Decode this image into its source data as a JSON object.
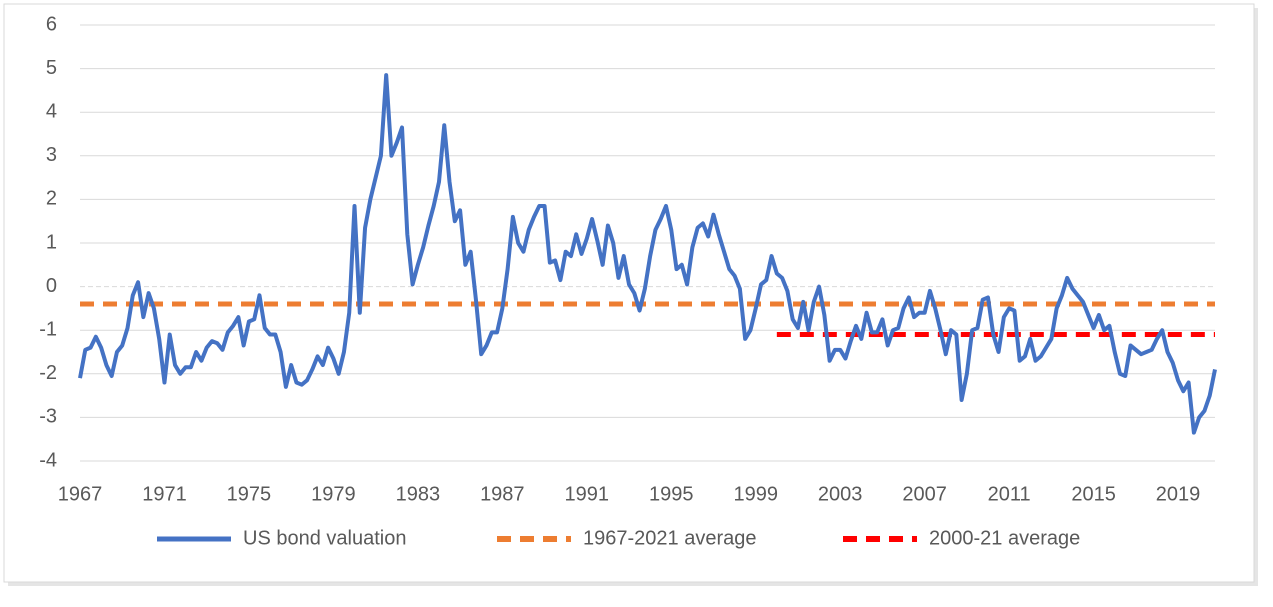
{
  "chart_data": {
    "type": "line",
    "x": [
      1967,
      1967.25,
      1967.5,
      1967.75,
      1968,
      1968.25,
      1968.5,
      1968.75,
      1969,
      1969.25,
      1969.5,
      1969.75,
      1970,
      1970.25,
      1970.5,
      1970.75,
      1971,
      1971.25,
      1971.5,
      1971.75,
      1972,
      1972.25,
      1972.5,
      1972.75,
      1973,
      1973.25,
      1973.5,
      1973.75,
      1974,
      1974.25,
      1974.5,
      1974.75,
      1975,
      1975.25,
      1975.5,
      1975.75,
      1976,
      1976.25,
      1976.5,
      1976.75,
      1977,
      1977.25,
      1977.5,
      1977.75,
      1978,
      1978.25,
      1978.5,
      1978.75,
      1979,
      1979.25,
      1979.5,
      1979.75,
      1980,
      1980.25,
      1980.5,
      1980.75,
      1981,
      1981.25,
      1981.5,
      1981.75,
      1982,
      1982.25,
      1982.5,
      1982.75,
      1983,
      1983.25,
      1983.5,
      1983.75,
      1984,
      1984.25,
      1984.5,
      1984.75,
      1985,
      1985.25,
      1985.5,
      1985.75,
      1986,
      1986.25,
      1986.5,
      1986.75,
      1987,
      1987.25,
      1987.5,
      1987.75,
      1988,
      1988.25,
      1988.5,
      1988.75,
      1989,
      1989.25,
      1989.5,
      1989.75,
      1990,
      1990.25,
      1990.5,
      1990.75,
      1991,
      1991.25,
      1991.5,
      1991.75,
      1992,
      1992.25,
      1992.5,
      1992.75,
      1993,
      1993.25,
      1993.5,
      1993.75,
      1994,
      1994.25,
      1994.5,
      1994.75,
      1995,
      1995.25,
      1995.5,
      1995.75,
      1996,
      1996.25,
      1996.5,
      1996.75,
      1997,
      1997.25,
      1997.5,
      1997.75,
      1998,
      1998.25,
      1998.5,
      1998.75,
      1999,
      1999.25,
      1999.5,
      1999.75,
      2000,
      2000.25,
      2000.5,
      2000.75,
      2001,
      2001.25,
      2001.5,
      2001.75,
      2002,
      2002.25,
      2002.5,
      2002.75,
      2003,
      2003.25,
      2003.5,
      2003.75,
      2004,
      2004.25,
      2004.5,
      2004.75,
      2005,
      2005.25,
      2005.5,
      2005.75,
      2006,
      2006.25,
      2006.5,
      2006.75,
      2007,
      2007.25,
      2007.5,
      2007.75,
      2008,
      2008.25,
      2008.5,
      2008.75,
      2009,
      2009.25,
      2009.5,
      2009.75,
      2010,
      2010.25,
      2010.5,
      2010.75,
      2011,
      2011.25,
      2011.5,
      2011.75,
      2012,
      2012.25,
      2012.5,
      2012.75,
      2013,
      2013.25,
      2013.5,
      2013.75,
      2014,
      2014.25,
      2014.5,
      2014.75,
      2015,
      2015.25,
      2015.5,
      2015.75,
      2016,
      2016.25,
      2016.5,
      2016.75,
      2017,
      2017.25,
      2017.5,
      2017.75,
      2018,
      2018.25,
      2018.5,
      2018.75,
      2019,
      2019.25,
      2019.5,
      2019.75,
      2020,
      2020.25,
      2020.5,
      2020.75
    ],
    "series": [
      {
        "name": "US bond valuation",
        "color": "#4472c4",
        "values": [
          -2.1,
          -1.45,
          -1.4,
          -1.15,
          -1.4,
          -1.8,
          -2.05,
          -1.5,
          -1.35,
          -0.95,
          -0.2,
          0.1,
          -0.7,
          -0.15,
          -0.5,
          -1.2,
          -2.2,
          -1.1,
          -1.8,
          -2.0,
          -1.85,
          -1.85,
          -1.5,
          -1.7,
          -1.4,
          -1.25,
          -1.3,
          -1.45,
          -1.05,
          -0.9,
          -0.7,
          -1.35,
          -0.8,
          -0.75,
          -0.2,
          -0.95,
          -1.1,
          -1.1,
          -1.5,
          -2.3,
          -1.8,
          -2.2,
          -2.25,
          -2.15,
          -1.9,
          -1.6,
          -1.8,
          -1.4,
          -1.65,
          -2.0,
          -1.5,
          -0.6,
          1.85,
          -0.6,
          1.35,
          2.0,
          2.5,
          3.0,
          4.85,
          3.0,
          3.3,
          3.65,
          1.2,
          0.05,
          0.5,
          0.9,
          1.4,
          1.85,
          2.4,
          3.7,
          2.4,
          1.5,
          1.75,
          0.5,
          0.8,
          -0.3,
          -1.55,
          -1.35,
          -1.05,
          -1.05,
          -0.5,
          0.4,
          1.6,
          1.0,
          0.8,
          1.3,
          1.6,
          1.85,
          1.85,
          0.55,
          0.6,
          0.15,
          0.8,
          0.7,
          1.2,
          0.75,
          1.1,
          1.55,
          1.05,
          0.5,
          1.4,
          1.0,
          0.2,
          0.7,
          0.05,
          -0.15,
          -0.55,
          -0.05,
          0.7,
          1.3,
          1.55,
          1.85,
          1.3,
          0.4,
          0.5,
          0.05,
          0.9,
          1.35,
          1.45,
          1.15,
          1.65,
          1.2,
          0.8,
          0.4,
          0.25,
          -0.05,
          -1.2,
          -1.0,
          -0.5,
          0.05,
          0.15,
          0.7,
          0.3,
          0.2,
          -0.1,
          -0.75,
          -0.95,
          -0.35,
          -1.0,
          -0.35,
          0.0,
          -0.65,
          -1.7,
          -1.45,
          -1.45,
          -1.65,
          -1.25,
          -0.9,
          -1.2,
          -0.6,
          -1.05,
          -1.05,
          -0.75,
          -1.35,
          -1.0,
          -0.95,
          -0.5,
          -0.25,
          -0.7,
          -0.6,
          -0.6,
          -0.1,
          -0.5,
          -1.0,
          -1.55,
          -1.0,
          -1.1,
          -2.6,
          -2.0,
          -1.0,
          -0.95,
          -0.3,
          -0.25,
          -1.1,
          -1.5,
          -0.7,
          -0.5,
          -0.55,
          -1.7,
          -1.6,
          -1.2,
          -1.7,
          -1.6,
          -1.4,
          -1.2,
          -0.5,
          -0.2,
          0.2,
          -0.05,
          -0.2,
          -0.35,
          -0.65,
          -0.95,
          -0.65,
          -1.0,
          -0.9,
          -1.5,
          -2.0,
          -2.05,
          -1.35,
          -1.45,
          -1.55,
          -1.5,
          -1.45,
          -1.2,
          -1.0,
          -1.5,
          -1.75,
          -2.15,
          -2.4,
          -2.2,
          -3.35,
          -3.0,
          -2.85,
          -2.5,
          -1.9
        ]
      }
    ],
    "averages": [
      {
        "name": "1967-2021 average",
        "color": "#ed7d31",
        "value": -0.4,
        "from": 1967,
        "to": 2020.75
      },
      {
        "name": "2000-21 average",
        "color": "#ff0000",
        "value": -1.1,
        "from": 2000,
        "to": 2020.75
      }
    ],
    "xlim": [
      1967,
      2020.75
    ],
    "xticks": [
      1967,
      1971,
      1975,
      1979,
      1983,
      1987,
      1991,
      1995,
      1999,
      2003,
      2007,
      2011,
      2015,
      2019
    ],
    "ylim": [
      -4,
      6
    ],
    "yticks": [
      -4,
      -3,
      -2,
      -1,
      0,
      1,
      2,
      3,
      4,
      5,
      6
    ],
    "grid": true,
    "legend": "bottom"
  }
}
